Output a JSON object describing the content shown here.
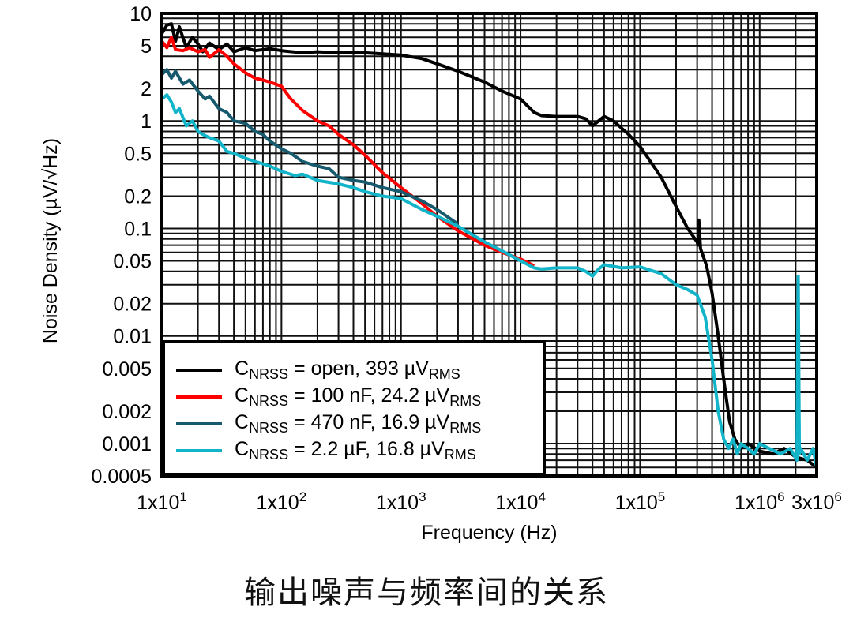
{
  "chart_data": {
    "type": "line",
    "xlabel": "Frequency (Hz)",
    "ylabel": "Noise Density (µV/√Hz)",
    "xscale": "log",
    "yscale": "log",
    "xlim": [
      10,
      3000000
    ],
    "ylim": [
      0.0005,
      10
    ],
    "grid": true,
    "legend_position": "bottom-left",
    "x_ticks": [
      {
        "value": 10,
        "base": "1x10",
        "exp": "1"
      },
      {
        "value": 100,
        "base": "1x10",
        "exp": "2"
      },
      {
        "value": 1000,
        "base": "1x10",
        "exp": "3"
      },
      {
        "value": 10000,
        "base": "1x10",
        "exp": "4"
      },
      {
        "value": 100000,
        "base": "1x10",
        "exp": "5"
      },
      {
        "value": 1000000,
        "base": "1x10",
        "exp": "6"
      },
      {
        "value": 3000000,
        "base": "3x10",
        "exp": "6"
      }
    ],
    "y_ticks": [
      "10",
      "5",
      "2",
      "1",
      "0.5",
      "0.2",
      "0.1",
      "0.05",
      "0.02",
      "0.01",
      "0.005",
      "0.002",
      "0.001",
      "0.0005"
    ],
    "series": [
      {
        "name_main": "C",
        "name_sub": "NRSS",
        "name_rest": " = open, 393 µV",
        "name_sub2": "RMS",
        "color": "#000000",
        "x": [
          10,
          11,
          12,
          13,
          14,
          16,
          18,
          20,
          22,
          25,
          30,
          35,
          40,
          50,
          60,
          80,
          100,
          150,
          200,
          300,
          500,
          700,
          1000,
          1500,
          2000,
          3000,
          5000,
          7000,
          10000,
          13000,
          15000,
          20000,
          30000,
          35000,
          40000,
          45000,
          50000,
          60000,
          80000,
          100000,
          150000,
          200000,
          250000,
          300000,
          305000,
          310000,
          320000,
          360000,
          400000,
          450000,
          500000,
          560000,
          620000,
          700000,
          800000,
          1000000,
          1300000,
          1600000,
          2000000,
          2500000,
          3000000
        ],
        "y": [
          6.5,
          7.8,
          8,
          5.5,
          7.5,
          4.8,
          6,
          5.2,
          4.4,
          5.3,
          4.6,
          5.2,
          4.4,
          4.8,
          4.5,
          4.7,
          4.5,
          4.3,
          4.4,
          4.3,
          4.3,
          4.2,
          4.1,
          3.8,
          3.4,
          2.9,
          2.3,
          1.9,
          1.6,
          1.2,
          1.12,
          1.1,
          1.1,
          1.05,
          0.9,
          1.0,
          1.1,
          1.0,
          0.75,
          0.58,
          0.3,
          0.16,
          0.1,
          0.075,
          0.07,
          0.12,
          0.065,
          0.045,
          0.025,
          0.01,
          0.004,
          0.0016,
          0.0011,
          0.0009,
          0.001,
          0.00085,
          0.0008,
          0.0009,
          0.00075,
          0.0007,
          0.0006
        ]
      },
      {
        "name_main": "C",
        "name_sub": "NRSS",
        "name_rest": " = 100 nF, 24.2 µV",
        "name_sub2": "RMS",
        "color": "#ff0000",
        "x": [
          10,
          11,
          12,
          13,
          15,
          17,
          20,
          23,
          25,
          30,
          35,
          40,
          50,
          60,
          70,
          80,
          100,
          120,
          150,
          200,
          250,
          300,
          400,
          500,
          700,
          1000,
          1500,
          2000,
          3000,
          5000,
          7000,
          10000,
          13000
        ],
        "y": [
          5.5,
          4.8,
          6,
          4.6,
          4.5,
          4.8,
          4.4,
          4.6,
          3.9,
          4.6,
          4.0,
          3.4,
          2.8,
          2.5,
          2.4,
          2.3,
          2.1,
          1.6,
          1.25,
          1.0,
          0.9,
          0.75,
          0.6,
          0.48,
          0.33,
          0.24,
          0.17,
          0.13,
          0.095,
          0.07,
          0.06,
          0.052,
          0.045
        ]
      },
      {
        "name_main": "C",
        "name_sub": "NRSS",
        "name_rest": " = 470 nF, 16.9 µV",
        "name_sub2": "RMS",
        "color": "#175a6e",
        "x": [
          10,
          11,
          12,
          13,
          15,
          17,
          20,
          23,
          25,
          30,
          35,
          40,
          50,
          60,
          70,
          80,
          100,
          120,
          150,
          200,
          250,
          300,
          400,
          500,
          700,
          1000,
          1500,
          2000,
          3000
        ],
        "y": [
          2.7,
          3.0,
          2.5,
          2.9,
          2.2,
          2.4,
          1.9,
          1.6,
          1.7,
          1.3,
          1.2,
          1.0,
          0.95,
          0.8,
          0.75,
          0.65,
          0.55,
          0.5,
          0.42,
          0.38,
          0.36,
          0.3,
          0.28,
          0.27,
          0.24,
          0.22,
          0.18,
          0.15,
          0.11
        ]
      },
      {
        "name_main": "C",
        "name_sub": "NRSS",
        "name_rest": " = 2.2 µF, 16.8 µV",
        "name_sub2": "RMS",
        "color": "#12b4c9",
        "x": [
          10,
          11,
          12,
          13,
          14,
          16,
          18,
          20,
          22,
          25,
          30,
          35,
          40,
          50,
          60,
          70,
          80,
          100,
          130,
          150,
          200,
          300,
          400,
          500,
          700,
          1000,
          1500,
          2000,
          3000,
          5000,
          7000,
          10000,
          13000,
          15000,
          20000,
          30000,
          35000,
          40000,
          45000,
          50000,
          70000,
          100000,
          150000,
          200000,
          250000,
          300000,
          350000,
          400000,
          450000,
          500000,
          550000,
          600000,
          650000,
          700000,
          800000,
          900000,
          1000000,
          1200000,
          1500000,
          1800000,
          2050000,
          2100000,
          2150000,
          2200000,
          2500000,
          2800000,
          3000000
        ],
        "y": [
          1.6,
          1.75,
          1.5,
          1.2,
          1.3,
          0.9,
          1.0,
          0.8,
          0.75,
          0.7,
          0.65,
          0.52,
          0.5,
          0.45,
          0.42,
          0.4,
          0.38,
          0.34,
          0.31,
          0.32,
          0.28,
          0.26,
          0.24,
          0.22,
          0.2,
          0.19,
          0.15,
          0.13,
          0.105,
          0.075,
          0.062,
          0.05,
          0.043,
          0.042,
          0.043,
          0.043,
          0.04,
          0.036,
          0.042,
          0.046,
          0.043,
          0.044,
          0.038,
          0.03,
          0.027,
          0.024,
          0.015,
          0.006,
          0.002,
          0.0011,
          0.0009,
          0.0011,
          0.0008,
          0.001,
          0.0009,
          0.0008,
          0.001,
          0.0009,
          0.0008,
          0.0009,
          0.0007,
          0.036,
          0.0008,
          0.0009,
          0.0007,
          0.0009,
          0.0006
        ]
      }
    ]
  },
  "caption": "输出噪声与频率间的关系"
}
